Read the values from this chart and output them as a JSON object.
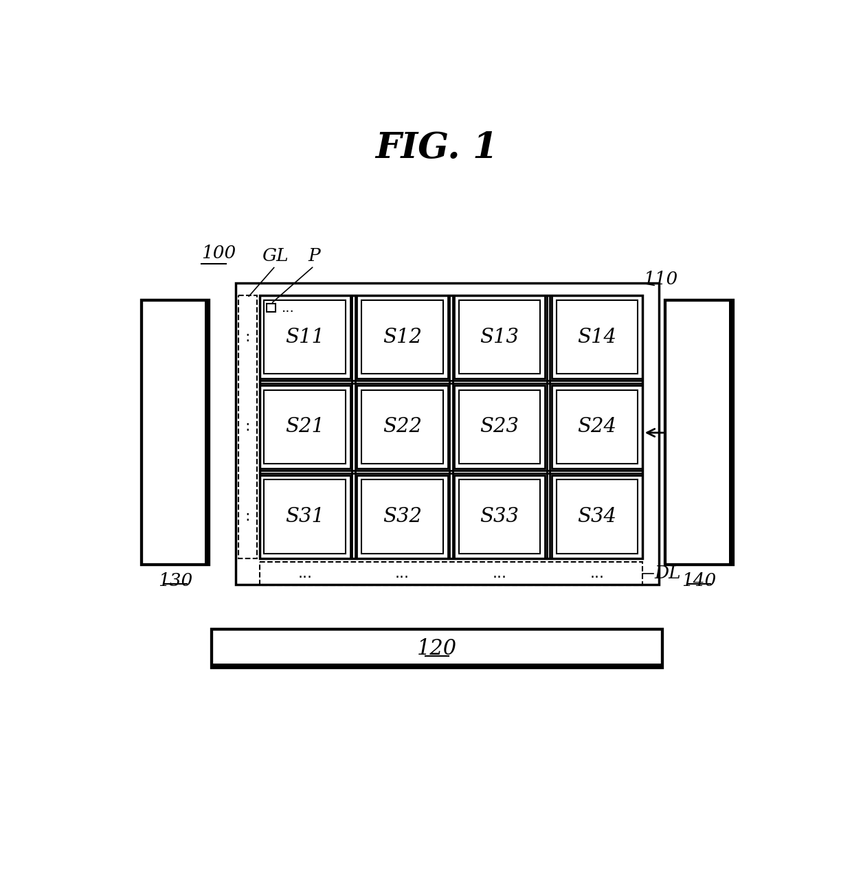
{
  "title": "FIG. 1",
  "title_fontsize": 38,
  "bg_color": "#ffffff",
  "label_100": "100",
  "label_110": "110",
  "label_120": "120",
  "label_130": "130",
  "label_140": "140",
  "label_GL": "GL",
  "label_P": "P",
  "label_DL": "DL",
  "cell_labels": [
    [
      "S11",
      "S12",
      "S13",
      "S14"
    ],
    [
      "S21",
      "S22",
      "S23",
      "S24"
    ],
    [
      "S31",
      "S32",
      "S33",
      "S34"
    ]
  ]
}
